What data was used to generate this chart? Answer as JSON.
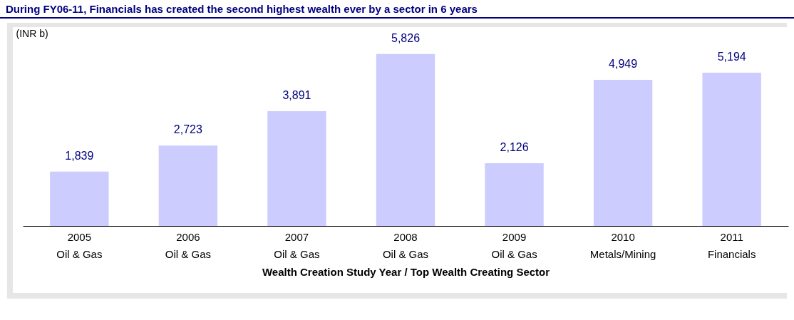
{
  "chart_data": {
    "type": "bar",
    "title": "During FY06-11, Financials has created the second highest wealth ever by a sector in 6 years",
    "ylabel": "(INR b)",
    "xlabel": "Wealth Creation Study Year / Top Wealth Creating Sector",
    "categories": [
      "2005\nOil & Gas",
      "2006\nOil & Gas",
      "2007\nOil & Gas",
      "2008\nOil & Gas",
      "2009\nOil & Gas",
      "2010\nMetals/Mining",
      "2011\nFinancials"
    ],
    "values": [
      1839,
      2723,
      3891,
      5826,
      2126,
      4949,
      5194
    ],
    "value_labels": [
      "1,839",
      "2,723",
      "3,891",
      "5,826",
      "2,126",
      "4,949",
      "5,194"
    ],
    "color": "#ccccff",
    "grid": false
  }
}
